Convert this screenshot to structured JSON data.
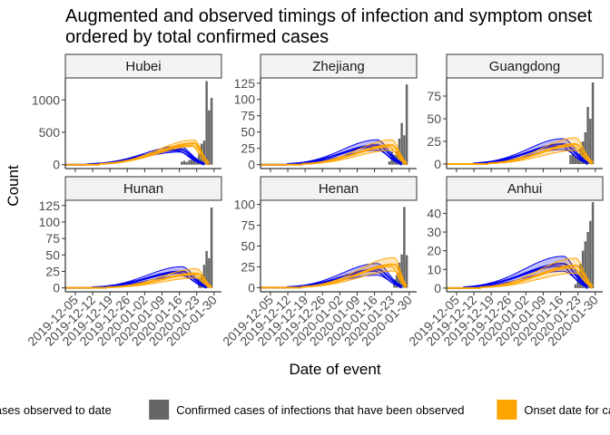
{
  "chart_data": {
    "type": "bar",
    "title_line1": "Augmented and observed timings of infection and symptom onset",
    "title_line2": " ordered by total confirmed cases",
    "xlabel": "Date of event",
    "ylabel": "Count",
    "x_ticks": [
      "2019-12-05",
      "2019-12-12",
      "2019-12-19",
      "2019-12-26",
      "2020-01-02",
      "2020-01-09",
      "2020-01-16",
      "2020-01-23",
      "2020-01-30"
    ],
    "x_range": [
      "2019-12-01",
      "2020-02-02"
    ],
    "colors": {
      "confirmed": "#666666",
      "infection": "#0000ee",
      "infection_fill": "rgba(0,0,238,0.25)",
      "onset": "#ffa500",
      "onset_fill": "rgba(255,165,0,0.25)",
      "strip_bg": "#f2f2f2"
    },
    "legend": {
      "items": [
        {
          "label": "Infection date for cases observed to date",
          "color": "#0000ee"
        },
        {
          "label": "Confirmed cases of infections that have been observed",
          "color": "#666666"
        },
        {
          "label": "Onset date for cases observed to date",
          "color": "#ffa500"
        }
      ]
    },
    "panels": [
      {
        "name": "Hubei",
        "yticks": [
          0,
          500,
          1000
        ],
        "ylim": [
          -60,
          1340
        ],
        "confirmed": [
          [
            "2020-01-17",
            45
          ],
          [
            "2020-01-18",
            60
          ],
          [
            "2020-01-19",
            40
          ],
          [
            "2020-01-20",
            70
          ],
          [
            "2020-01-21",
            75
          ],
          [
            "2020-01-22",
            72
          ],
          [
            "2020-01-23",
            105
          ],
          [
            "2020-01-24",
            180
          ],
          [
            "2020-01-25",
            323
          ],
          [
            "2020-01-26",
            371
          ],
          [
            "2020-01-27",
            1291
          ],
          [
            "2020-01-28",
            840
          ],
          [
            "2020-01-29",
            1032
          ]
        ],
        "infection": {
          "peak_date": "2020-01-16",
          "peak": 240,
          "ci": 45,
          "start": "2019-12-10",
          "end": "2020-01-26"
        },
        "onset": {
          "peak_date": "2020-01-22",
          "peak": 330,
          "ci": 50,
          "start": "2019-12-15",
          "end": "2020-01-28"
        }
      },
      {
        "name": "Zhejiang",
        "yticks": [
          0,
          25,
          50,
          75,
          100,
          125
        ],
        "ylim": [
          -6,
          133
        ],
        "confirmed": [
          [
            "2020-01-22",
            5
          ],
          [
            "2020-01-23",
            20
          ],
          [
            "2020-01-24",
            15
          ],
          [
            "2020-01-25",
            20
          ],
          [
            "2020-01-26",
            40
          ],
          [
            "2020-01-27",
            64
          ],
          [
            "2020-01-28",
            45
          ],
          [
            "2020-01-29",
            123
          ]
        ],
        "infection": {
          "peak_date": "2020-01-17",
          "peak": 30,
          "ci": 8,
          "start": "2019-12-12",
          "end": "2020-01-27"
        },
        "onset": {
          "peak_date": "2020-01-23",
          "peak": 30,
          "ci": 8,
          "start": "2019-12-18",
          "end": "2020-01-29"
        }
      },
      {
        "name": "Guangdong",
        "yticks": [
          0,
          25,
          50,
          75
        ],
        "ylim": [
          -5,
          95
        ],
        "confirmed": [
          [
            "2020-01-20",
            10
          ],
          [
            "2020-01-21",
            12
          ],
          [
            "2020-01-22",
            8
          ],
          [
            "2020-01-23",
            7
          ],
          [
            "2020-01-24",
            17
          ],
          [
            "2020-01-25",
            25
          ],
          [
            "2020-01-26",
            35
          ],
          [
            "2020-01-27",
            63
          ],
          [
            "2020-01-28",
            50
          ],
          [
            "2020-01-29",
            90
          ]
        ],
        "infection": {
          "peak_date": "2020-01-17",
          "peak": 22,
          "ci": 6,
          "start": "2019-12-12",
          "end": "2020-01-27"
        },
        "onset": {
          "peak_date": "2020-01-22",
          "peak": 22,
          "ci": 7,
          "start": "2019-12-18",
          "end": "2020-01-29"
        }
      },
      {
        "name": "Hunan",
        "yticks": [
          0,
          25,
          50,
          75,
          100,
          125
        ],
        "ylim": [
          -6,
          133
        ],
        "confirmed": [
          [
            "2020-01-24",
            15
          ],
          [
            "2020-01-25",
            20
          ],
          [
            "2020-01-26",
            35
          ],
          [
            "2020-01-27",
            56
          ],
          [
            "2020-01-28",
            45
          ],
          [
            "2020-01-29",
            122
          ]
        ],
        "infection": {
          "peak_date": "2020-01-17",
          "peak": 25,
          "ci": 7,
          "start": "2019-12-12",
          "end": "2020-01-27"
        },
        "onset": {
          "peak_date": "2020-01-23",
          "peak": 22,
          "ci": 7,
          "start": "2019-12-18",
          "end": "2020-01-29"
        }
      },
      {
        "name": "Henan",
        "yticks": [
          0,
          25,
          50,
          75,
          100
        ],
        "ylim": [
          -5,
          105
        ],
        "confirmed": [
          [
            "2020-01-24",
            10
          ],
          [
            "2020-01-25",
            15
          ],
          [
            "2020-01-26",
            30
          ],
          [
            "2020-01-27",
            40
          ],
          [
            "2020-01-28",
            97
          ],
          [
            "2020-01-29",
            39
          ]
        ],
        "infection": {
          "peak_date": "2020-01-17",
          "peak": 22,
          "ci": 7,
          "start": "2019-12-12",
          "end": "2020-01-27"
        },
        "onset": {
          "peak_date": "2020-01-24",
          "peak": 28,
          "ci": 8,
          "start": "2019-12-18",
          "end": "2020-01-29"
        }
      },
      {
        "name": "Anhui",
        "yticks": [
          0,
          10,
          20,
          30,
          40
        ],
        "ylim": [
          -2,
          47
        ],
        "confirmed": [
          [
            "2020-01-22",
            2
          ],
          [
            "2020-01-23",
            7
          ],
          [
            "2020-01-24",
            13
          ],
          [
            "2020-01-25",
            20
          ],
          [
            "2020-01-26",
            25
          ],
          [
            "2020-01-27",
            30
          ],
          [
            "2020-01-28",
            36
          ],
          [
            "2020-01-29",
            46
          ]
        ],
        "infection": {
          "peak_date": "2020-01-17",
          "peak": 13,
          "ci": 4,
          "start": "2019-12-08",
          "end": "2020-01-27"
        },
        "onset": {
          "peak_date": "2020-01-22",
          "peak": 12,
          "ci": 4,
          "start": "2019-12-15",
          "end": "2020-01-29"
        }
      }
    ]
  }
}
